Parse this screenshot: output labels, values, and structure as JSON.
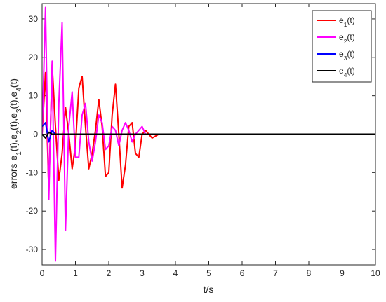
{
  "chart_data": {
    "type": "line",
    "xlabel": "t/s",
    "ylabel": "errors  e1(t),e2(t),e3(t),e4(t)",
    "x": [
      0,
      0.1,
      0.2,
      0.3,
      0.4,
      0.5,
      0.6,
      0.7,
      0.8,
      0.9,
      1.0,
      1.1,
      1.2,
      1.3,
      1.4,
      1.5,
      1.6,
      1.7,
      1.8,
      1.9,
      2.0,
      2.1,
      2.2,
      2.3,
      2.4,
      2.5,
      2.6,
      2.7,
      2.8,
      2.9,
      3.0,
      3.1,
      3.2,
      3.3,
      3.4,
      3.5,
      4,
      5,
      6,
      7,
      8,
      9,
      10
    ],
    "series": [
      {
        "name": "e1(t)",
        "color": "#ff0000",
        "values": [
          0,
          16,
          -15,
          18,
          2,
          -12,
          -5,
          7,
          0,
          -9,
          -3,
          12,
          15,
          2,
          -9,
          -5,
          1,
          9,
          2,
          -11,
          -10,
          5,
          13,
          0,
          -14,
          -8,
          2,
          3,
          -5,
          -6,
          0,
          1,
          0,
          -1,
          -0.5,
          0,
          0,
          0,
          0,
          0,
          0,
          0,
          0
        ]
      },
      {
        "name": "e2(t)",
        "color": "#ff00ff",
        "values": [
          0,
          33,
          -17,
          19,
          -33,
          8,
          29,
          -25,
          2,
          11,
          -6,
          -6,
          5,
          8,
          -2,
          -7,
          -2,
          5,
          3,
          -4,
          -3,
          2,
          1,
          -3,
          1,
          3,
          1,
          -2,
          0,
          1,
          2,
          0,
          0,
          0,
          0,
          0,
          0,
          0,
          0,
          0,
          0,
          0,
          0
        ]
      },
      {
        "name": "e3(t)",
        "color": "#0000ff",
        "values": [
          2,
          3,
          -2,
          1,
          0,
          0,
          0,
          0,
          0,
          0,
          0,
          0,
          0,
          0,
          0,
          0,
          0,
          0,
          0,
          0,
          0,
          0,
          0,
          0,
          0,
          0,
          0,
          0,
          0,
          0,
          0,
          0,
          0,
          0,
          0,
          0,
          0,
          0,
          0,
          0,
          0,
          0,
          0
        ]
      },
      {
        "name": "e4(t)",
        "color": "#000000",
        "values": [
          0,
          -1,
          0.5,
          0,
          0,
          0,
          0,
          0,
          0,
          0,
          0,
          0,
          0,
          0,
          0,
          0,
          0,
          0,
          0,
          0,
          0,
          0,
          0,
          0,
          0,
          0,
          0,
          0,
          0,
          0,
          0,
          0,
          0,
          0,
          0,
          0,
          0,
          0,
          0,
          0,
          0,
          0,
          0
        ]
      }
    ],
    "xlim": [
      0,
      10
    ],
    "xticks": [
      0,
      1,
      2,
      3,
      4,
      5,
      6,
      7,
      8,
      9,
      10
    ],
    "ylim": [
      -34,
      34
    ],
    "yticks": [
      -30,
      -20,
      -10,
      0,
      10,
      20,
      30
    ],
    "legend": "upper right"
  }
}
